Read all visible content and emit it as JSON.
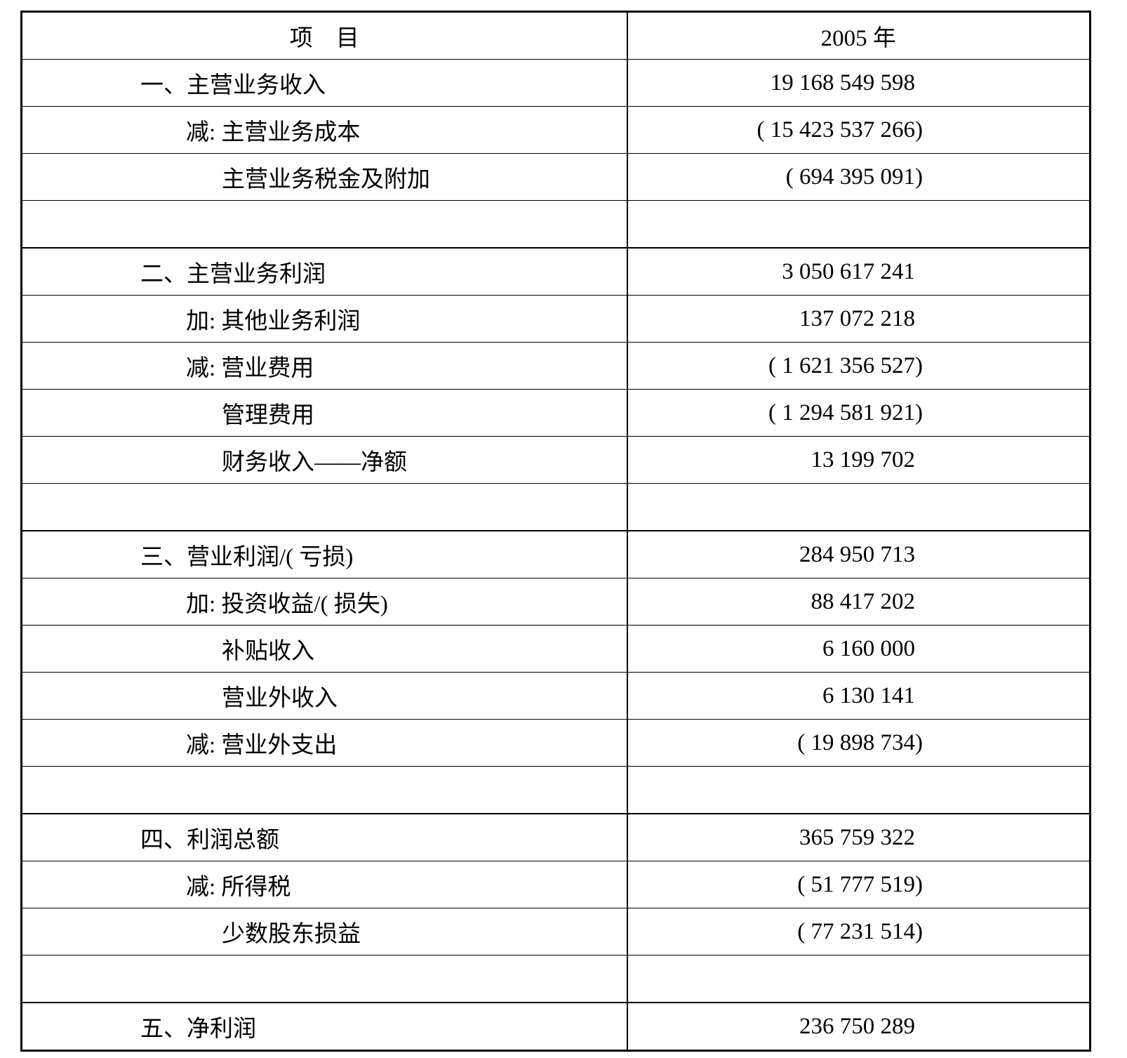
{
  "page": {
    "background": "#ffffff",
    "text_color": "#000000",
    "border_color": "#000000"
  },
  "table": {
    "columns": [
      {
        "label": "项　目"
      },
      {
        "label": "2005 年"
      }
    ],
    "rows": [
      {
        "label": "一、主营业务收入",
        "indent": 1,
        "value": "19 168 549 598",
        "section": false,
        "spacer": false
      },
      {
        "label": "减: 主营业务成本",
        "indent": 2,
        "value": "( 15 423 537 266)",
        "section": false,
        "spacer": false
      },
      {
        "label": "主营业务税金及附加",
        "indent": 3,
        "value": "( 694 395 091)",
        "section": false,
        "spacer": false
      },
      {
        "label": "",
        "indent": 0,
        "value": "",
        "section": false,
        "spacer": true
      },
      {
        "label": "二、主营业务利润",
        "indent": 1,
        "value": "3 050 617 241",
        "section": true,
        "spacer": false
      },
      {
        "label": "加: 其他业务利润",
        "indent": 2,
        "value": "137 072 218",
        "section": false,
        "spacer": false
      },
      {
        "label": "减: 营业费用",
        "indent": 2,
        "value": "( 1 621 356 527)",
        "section": false,
        "spacer": false
      },
      {
        "label": "管理费用",
        "indent": 3,
        "value": "( 1 294 581 921)",
        "section": false,
        "spacer": false
      },
      {
        "label": "财务收入——净额",
        "indent": 3,
        "value": "13 199 702",
        "section": false,
        "spacer": false
      },
      {
        "label": "",
        "indent": 0,
        "value": "",
        "section": false,
        "spacer": true
      },
      {
        "label": "三、营业利润/( 亏损)",
        "indent": 1,
        "value": "284 950 713",
        "section": true,
        "spacer": false
      },
      {
        "label": "加: 投资收益/( 损失)",
        "indent": 2,
        "value": "88 417 202",
        "section": false,
        "spacer": false
      },
      {
        "label": "补贴收入",
        "indent": 3,
        "value": "6 160 000",
        "section": false,
        "spacer": false
      },
      {
        "label": "营业外收入",
        "indent": 3,
        "value": "6 130 141",
        "section": false,
        "spacer": false
      },
      {
        "label": "减: 营业外支出",
        "indent": 2,
        "value": "( 19 898 734)",
        "section": false,
        "spacer": false
      },
      {
        "label": "",
        "indent": 0,
        "value": "",
        "section": false,
        "spacer": true
      },
      {
        "label": "四、利润总额",
        "indent": 1,
        "value": "365 759 322",
        "section": true,
        "spacer": false
      },
      {
        "label": "减: 所得税",
        "indent": 2,
        "value": "( 51 777 519)",
        "section": false,
        "spacer": false
      },
      {
        "label": "少数股东损益",
        "indent": 3,
        "value": "( 77 231 514)",
        "section": false,
        "spacer": false
      },
      {
        "label": "",
        "indent": 0,
        "value": "",
        "section": false,
        "spacer": true
      },
      {
        "label": "五、净利润",
        "indent": 1,
        "value": "236 750 289",
        "section": true,
        "spacer": false
      }
    ]
  }
}
